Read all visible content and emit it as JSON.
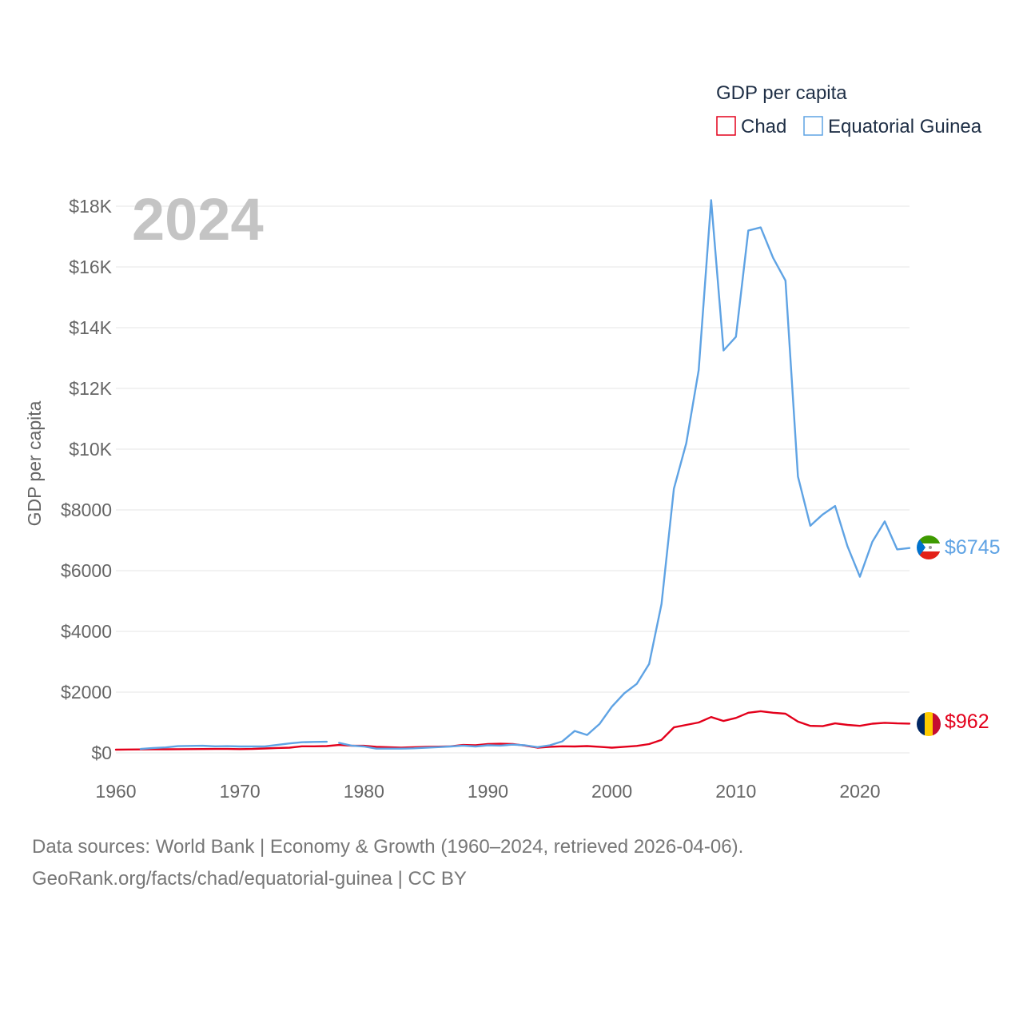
{
  "chart_data": {
    "type": "line",
    "title": "GDP per capita",
    "year_label": "2024",
    "ylabel": "GDP per capita",
    "xlabel": "",
    "xlim": [
      1960,
      2024
    ],
    "ylim": [
      0,
      18000
    ],
    "x_ticks": [
      1960,
      1970,
      1980,
      1990,
      2000,
      2010,
      2020
    ],
    "x_tick_labels": [
      "1960",
      "1970",
      "1980",
      "1990",
      "2000",
      "2010",
      "2020"
    ],
    "y_ticks": [
      0,
      2000,
      4000,
      6000,
      8000,
      10000,
      12000,
      14000,
      16000,
      18000
    ],
    "y_tick_labels": [
      "$0",
      "$2000",
      "$4000",
      "$6000",
      "$8000",
      "$10K",
      "$12K",
      "$14K",
      "$16K",
      "$18K"
    ],
    "legend_position": "top-right",
    "series": [
      {
        "name": "Chad",
        "color": "#e3001b",
        "end_label": "$962",
        "flag_icon": "chad-flag-icon",
        "points": [
          [
            1960,
            105
          ],
          [
            1961,
            110
          ],
          [
            1962,
            112
          ],
          [
            1963,
            115
          ],
          [
            1964,
            118
          ],
          [
            1965,
            122
          ],
          [
            1966,
            124
          ],
          [
            1967,
            126
          ],
          [
            1968,
            128
          ],
          [
            1969,
            130
          ],
          [
            1970,
            125
          ],
          [
            1971,
            130
          ],
          [
            1972,
            145
          ],
          [
            1973,
            160
          ],
          [
            1974,
            170
          ],
          [
            1975,
            215
          ],
          [
            1976,
            215
          ],
          [
            1977,
            225
          ],
          [
            1978,
            260
          ],
          [
            1979,
            235
          ],
          [
            1980,
            235
          ],
          [
            1981,
            200
          ],
          [
            1982,
            185
          ],
          [
            1983,
            175
          ],
          [
            1984,
            185
          ],
          [
            1985,
            200
          ],
          [
            1986,
            205
          ],
          [
            1987,
            215
          ],
          [
            1988,
            260
          ],
          [
            1989,
            250
          ],
          [
            1990,
            290
          ],
          [
            1991,
            300
          ],
          [
            1992,
            290
          ],
          [
            1993,
            240
          ],
          [
            1994,
            170
          ],
          [
            1995,
            200
          ],
          [
            1996,
            215
          ],
          [
            1997,
            210
          ],
          [
            1998,
            225
          ],
          [
            1999,
            200
          ],
          [
            2000,
            170
          ],
          [
            2001,
            200
          ],
          [
            2002,
            230
          ],
          [
            2003,
            290
          ],
          [
            2004,
            430
          ],
          [
            2005,
            840
          ],
          [
            2006,
            920
          ],
          [
            2007,
            1000
          ],
          [
            2008,
            1180
          ],
          [
            2009,
            1050
          ],
          [
            2010,
            1150
          ],
          [
            2011,
            1320
          ],
          [
            2012,
            1370
          ],
          [
            2013,
            1320
          ],
          [
            2014,
            1290
          ],
          [
            2015,
            1030
          ],
          [
            2016,
            890
          ],
          [
            2017,
            880
          ],
          [
            2018,
            970
          ],
          [
            2019,
            920
          ],
          [
            2020,
            890
          ],
          [
            2021,
            960
          ],
          [
            2022,
            990
          ],
          [
            2023,
            970
          ],
          [
            2024,
            962
          ]
        ]
      },
      {
        "name": "Equatorial Guinea",
        "color": "#5fa3e4",
        "end_label": "$6745",
        "flag_icon": "equatorial-guinea-flag-icon",
        "points": [
          [
            1962,
            130
          ],
          [
            1963,
            160
          ],
          [
            1964,
            180
          ],
          [
            1965,
            220
          ],
          [
            1966,
            230
          ],
          [
            1967,
            235
          ],
          [
            1968,
            215
          ],
          [
            1969,
            220
          ],
          [
            1970,
            210
          ],
          [
            1971,
            210
          ],
          [
            1972,
            210
          ],
          [
            1973,
            260
          ],
          [
            1974,
            310
          ],
          [
            1975,
            350
          ],
          [
            1976,
            360
          ],
          [
            1977,
            365
          ],
          null,
          [
            1978,
            330
          ],
          [
            1979,
            240
          ],
          [
            1980,
            210
          ],
          [
            1981,
            140
          ],
          [
            1982,
            140
          ],
          [
            1983,
            140
          ],
          [
            1984,
            150
          ],
          [
            1985,
            170
          ],
          [
            1986,
            190
          ],
          [
            1987,
            210
          ],
          [
            1988,
            240
          ],
          [
            1989,
            210
          ],
          [
            1990,
            250
          ],
          [
            1991,
            240
          ],
          [
            1992,
            270
          ],
          [
            1993,
            250
          ],
          [
            1994,
            190
          ],
          [
            1995,
            250
          ],
          [
            1996,
            380
          ],
          [
            1997,
            720
          ],
          [
            1998,
            590
          ],
          [
            1999,
            950
          ],
          [
            2000,
            1520
          ],
          [
            2001,
            1960
          ],
          [
            2002,
            2270
          ],
          [
            2003,
            2930
          ],
          [
            2004,
            4900
          ],
          [
            2005,
            8700
          ],
          [
            2006,
            10200
          ],
          [
            2007,
            12600
          ],
          [
            2008,
            18200
          ],
          [
            2009,
            13250
          ],
          [
            2010,
            13700
          ],
          [
            2011,
            17200
          ],
          [
            2012,
            17300
          ],
          [
            2013,
            16300
          ],
          [
            2014,
            15550
          ],
          [
            2015,
            9100
          ],
          [
            2016,
            7480
          ],
          [
            2017,
            7850
          ],
          [
            2018,
            8130
          ],
          [
            2019,
            6800
          ],
          [
            2020,
            5800
          ],
          [
            2021,
            6950
          ],
          [
            2022,
            7620
          ],
          [
            2023,
            6700
          ],
          [
            2024,
            6745
          ]
        ]
      }
    ]
  },
  "legend": {
    "title": "GDP per capita",
    "items": [
      {
        "label": "Chad",
        "color": "#e3001b"
      },
      {
        "label": "Equatorial Guinea",
        "color": "#5fa3e4"
      }
    ]
  },
  "footer": {
    "line1": "Data sources: World Bank | Economy & Growth (1960–2024, retrieved 2026-04-06).",
    "line2": "GeoRank.org/facts/chad/equatorial-guinea | CC BY"
  }
}
